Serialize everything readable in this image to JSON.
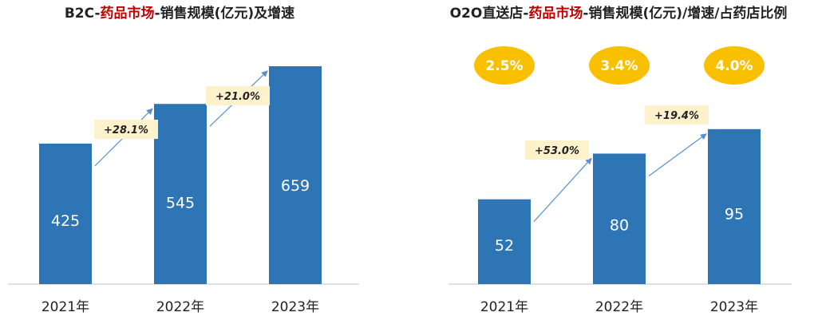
{
  "colors": {
    "bar": "#2e75b6",
    "arrow": "#5b8fcf",
    "growth_box": "#fdf2cc",
    "share_ellipse": "#f8c000",
    "highlight": "#c00000",
    "axis": "#bfbfbf"
  },
  "chart_data": [
    {
      "type": "bar",
      "title": {
        "prefix": "B2C-",
        "highlight": "药品市场",
        "suffix": "-销售规模(亿元)及增速"
      },
      "categories": [
        "2021年",
        "2022年",
        "2023年"
      ],
      "values": [
        425,
        545,
        659
      ],
      "value_labels": [
        "425",
        "545",
        "659"
      ],
      "growth_labels": [
        "+28.1%",
        "+21.0%"
      ],
      "ylim": [
        0,
        700
      ],
      "grid": false,
      "legend": "none"
    },
    {
      "type": "bar",
      "title": {
        "prefix": "O2O直送店-",
        "highlight": "药品市场",
        "suffix": "-销售规模(亿元)/增速/占药店比例"
      },
      "categories": [
        "2021年",
        "2022年",
        "2023年"
      ],
      "values": [
        52,
        80,
        95
      ],
      "value_labels": [
        "52",
        "80",
        "95"
      ],
      "growth_labels": [
        "+53.0%",
        "+19.4%"
      ],
      "share_labels": [
        "2.5%",
        "3.4%",
        "4.0%"
      ],
      "ylim": [
        0,
        158
      ],
      "grid": false,
      "legend": "none"
    }
  ]
}
